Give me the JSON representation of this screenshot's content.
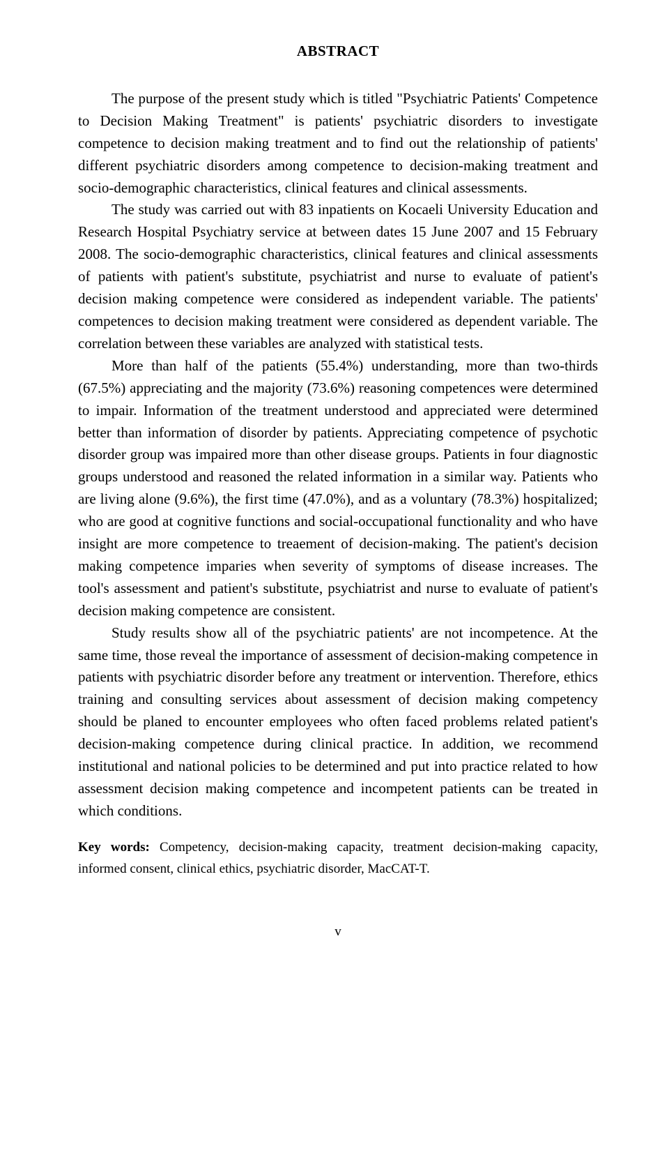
{
  "title": "ABSTRACT",
  "paragraphs": {
    "p1": "The purpose of the present study which is titled \"Psychiatric Patients' Competence to Decision Making Treatment\" is patients' psychiatric disorders to investigate competence to decision making treatment and to find out the relationship of patients' different psychiatric disorders among competence to decision-making treatment and socio-demographic characteristics, clinical features and clinical assessments.",
    "p2": "The study was carried out with 83 inpatients on Kocaeli University Education and Research Hospital Psychiatry service at between dates 15 June 2007 and 15 February 2008. The socio-demographic characteristics, clinical features and clinical assessments of patients with patient's substitute, psychiatrist and nurse to evaluate of patient's decision making competence were considered as independent variable. The patients' competences to decision making treatment were considered as dependent variable. The correlation between these variables are analyzed with statistical tests.",
    "p3": "More than half of the patients (55.4%) understanding, more than two-thirds (67.5%) appreciating and the majority (73.6%) reasoning competences were determined to impair. Information of the treatment understood and appreciated were determined better than information of disorder by patients. Appreciating competence of psychotic disorder group was impaired more than other disease groups. Patients in four diagnostic groups understood and reasoned the related information in a similar way. Patients who are living alone (9.6%), the first time (47.0%), and as a voluntary (78.3%) hospitalized; who are good at cognitive functions and social-occupational functionality and who have insight are more competence to treaement of decision-making. The patient's decision making competence imparies when severity of symptoms of disease increases. The tool's assessment and patient's substitute, psychiatrist and nurse to evaluate of patient's decision making competence are consistent.",
    "p4": "Study results show all of the psychiatric patients' are not incompetence. At the same time, those reveal the importance of assessment of decision-making competence in patients with psychiatric disorder before any treatment or intervention. Therefore, ethics training and consulting services about assessment of decision making competency should be planed to encounter employees who often faced problems related patient's decision-making competence during clinical practice. In addition, we recommend institutional and national policies to be determined and put into practice related to how assessment decision making competence and incompetent patients can be treated in which conditions."
  },
  "keywords_label": "Key words:",
  "keywords_text": " Competency, decision-making capacity, treatment decision-making capacity, informed consent, clinical ethics, psychiatric disorder, MacCAT-T.",
  "page_number": "v"
}
